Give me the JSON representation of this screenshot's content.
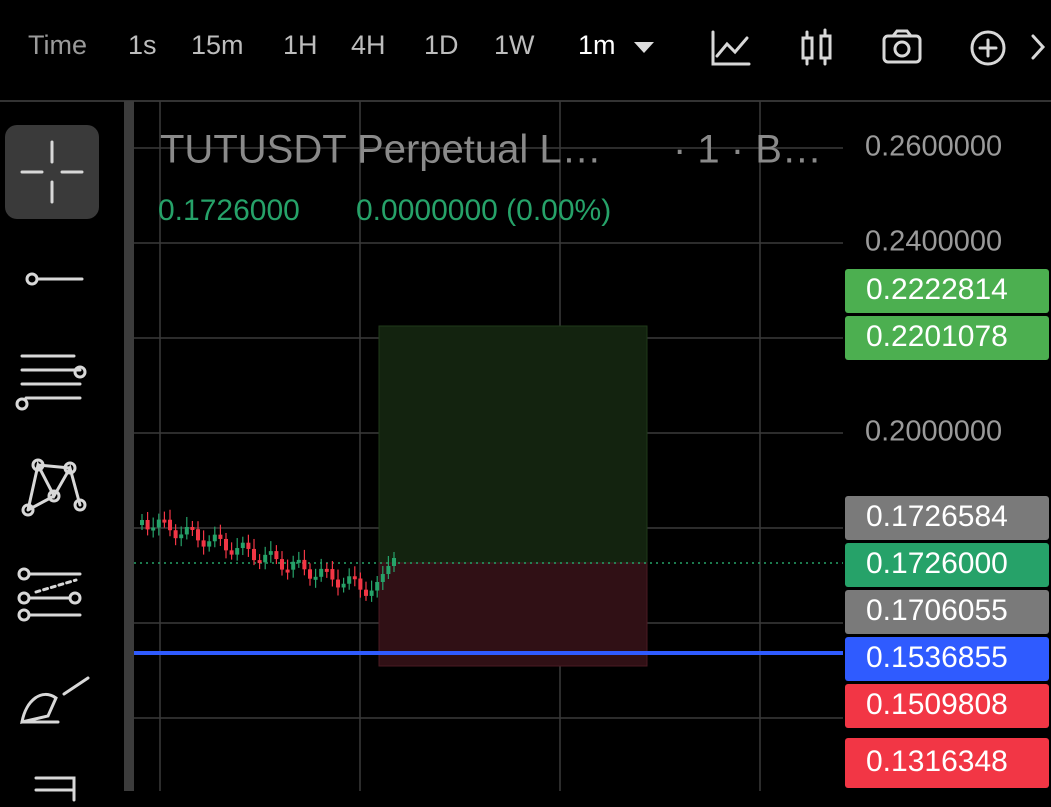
{
  "toolbar": {
    "label": "Time",
    "intervals": [
      "1s",
      "15m",
      "1H",
      "4H",
      "1D",
      "1W"
    ],
    "selected": "1m"
  },
  "chart": {
    "title": "TUTUSDT Perpetual L…",
    "title_suffix": "· 1 · B…",
    "last_price": "0.1726000",
    "change": "0.0000000 (0.00%)",
    "price_axis": [
      "0.2600000",
      "0.2400000",
      "0.2000000"
    ],
    "badges": [
      {
        "label": "0.2222814",
        "color": "#4caf50"
      },
      {
        "label": "0.2201078",
        "color": "#4caf50"
      },
      {
        "label": "0.1726584",
        "color": "#7a7a7a"
      },
      {
        "label": "0.1726000",
        "color": "#26a269"
      },
      {
        "label": "0.1706055",
        "color": "#7a7a7a"
      },
      {
        "label": "0.1536855",
        "color": "#2f5bff"
      },
      {
        "label": "0.1509808",
        "color": "#f23645"
      },
      {
        "label": "0.1316348",
        "color": "#f23645"
      }
    ]
  }
}
